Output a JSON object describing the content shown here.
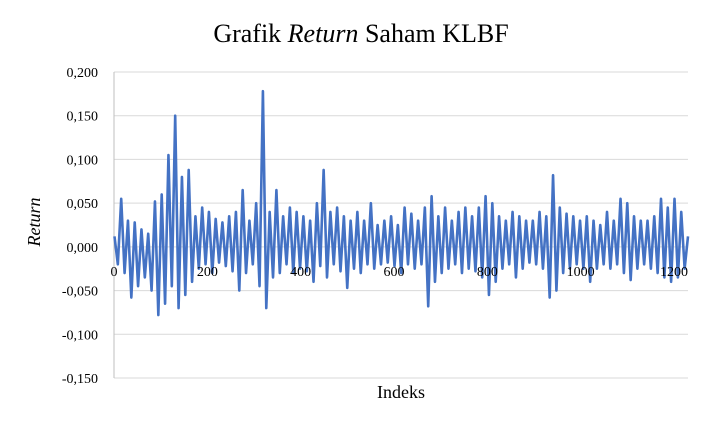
{
  "colors": {
    "series": "#4472C4",
    "grid": "#D9D9D9",
    "axis": "#BFBFBF"
  },
  "chart_data": {
    "type": "line",
    "title_prefix": "Grafik ",
    "title_italic": "Return",
    "title_suffix": " Saham KLBF",
    "xlabel": "Indeks",
    "ylabel": "Return",
    "xlim": [
      0,
      1230
    ],
    "ylim": [
      -0.15,
      0.2
    ],
    "x_ticks": [
      0,
      200,
      400,
      600,
      800,
      1000,
      1200
    ],
    "x_tick_labels": [
      "0",
      "200",
      "400",
      "600",
      "800",
      "1000",
      "1200"
    ],
    "y_ticks": [
      -0.15,
      -0.1,
      -0.05,
      0,
      0.05,
      0.1,
      0.15,
      0.2
    ],
    "y_tick_labels": [
      "-0,150",
      "-0,100",
      "-0,050",
      "0,000",
      "0,050",
      "0,100",
      "0,150",
      "0,200"
    ],
    "grid": "horizontal",
    "legend": "none",
    "series": [
      {
        "x_start": 1,
        "x_step": 1,
        "values": [
          0.012,
          -0.02,
          0.055,
          -0.03,
          0.03,
          -0.058,
          0.028,
          -0.045,
          0.02,
          -0.035,
          0.015,
          -0.05,
          0.052,
          -0.078,
          0.06,
          -0.065,
          0.105,
          -0.045,
          0.15,
          -0.07,
          0.08,
          -0.055,
          0.088,
          -0.04,
          0.035,
          -0.025,
          0.045,
          -0.02,
          0.04,
          -0.03,
          0.032,
          -0.018,
          0.028,
          -0.022,
          0.035,
          -0.028,
          0.04,
          -0.05,
          0.065,
          -0.03,
          0.03,
          -0.02,
          0.05,
          -0.045,
          0.178,
          -0.07,
          0.04,
          -0.035,
          0.065,
          -0.03,
          0.035,
          -0.02,
          0.045,
          -0.03,
          0.04,
          -0.025,
          0.035,
          -0.028,
          0.03,
          -0.04,
          0.05,
          -0.022,
          0.088,
          -0.035,
          0.04,
          -0.02,
          0.045,
          -0.028,
          0.035,
          -0.047,
          0.03,
          -0.025,
          0.04,
          -0.03,
          0.03,
          -0.02,
          0.05,
          -0.025,
          0.025,
          -0.02,
          0.03,
          -0.018,
          0.035,
          -0.022,
          0.025,
          -0.03,
          0.045,
          -0.02,
          0.038,
          -0.025,
          0.03,
          -0.02,
          0.045,
          -0.068,
          0.058,
          -0.04,
          0.035,
          -0.03,
          0.045,
          -0.025,
          0.03,
          -0.02,
          0.04,
          -0.03,
          0.045,
          -0.025,
          0.035,
          -0.028,
          0.045,
          -0.035,
          0.058,
          -0.055,
          0.05,
          -0.04,
          0.035,
          -0.025,
          0.03,
          -0.02,
          0.04,
          -0.035,
          0.035,
          -0.025,
          0.03,
          -0.018,
          0.03,
          -0.02,
          0.04,
          -0.025,
          0.035,
          -0.058,
          0.082,
          -0.05,
          0.045,
          -0.03,
          0.038,
          -0.025,
          0.035,
          -0.02,
          0.03,
          -0.025,
          0.035,
          -0.04,
          0.03,
          -0.025,
          0.025,
          -0.02,
          0.04,
          -0.025,
          0.03,
          -0.02,
          0.055,
          -0.03,
          0.05,
          -0.038,
          0.035,
          -0.025,
          0.03,
          -0.02,
          0.03,
          -0.025,
          0.035,
          -0.03,
          0.055,
          -0.035,
          0.045,
          -0.04,
          0.055,
          -0.035,
          0.04,
          -0.025,
          0.012
        ]
      }
    ]
  }
}
